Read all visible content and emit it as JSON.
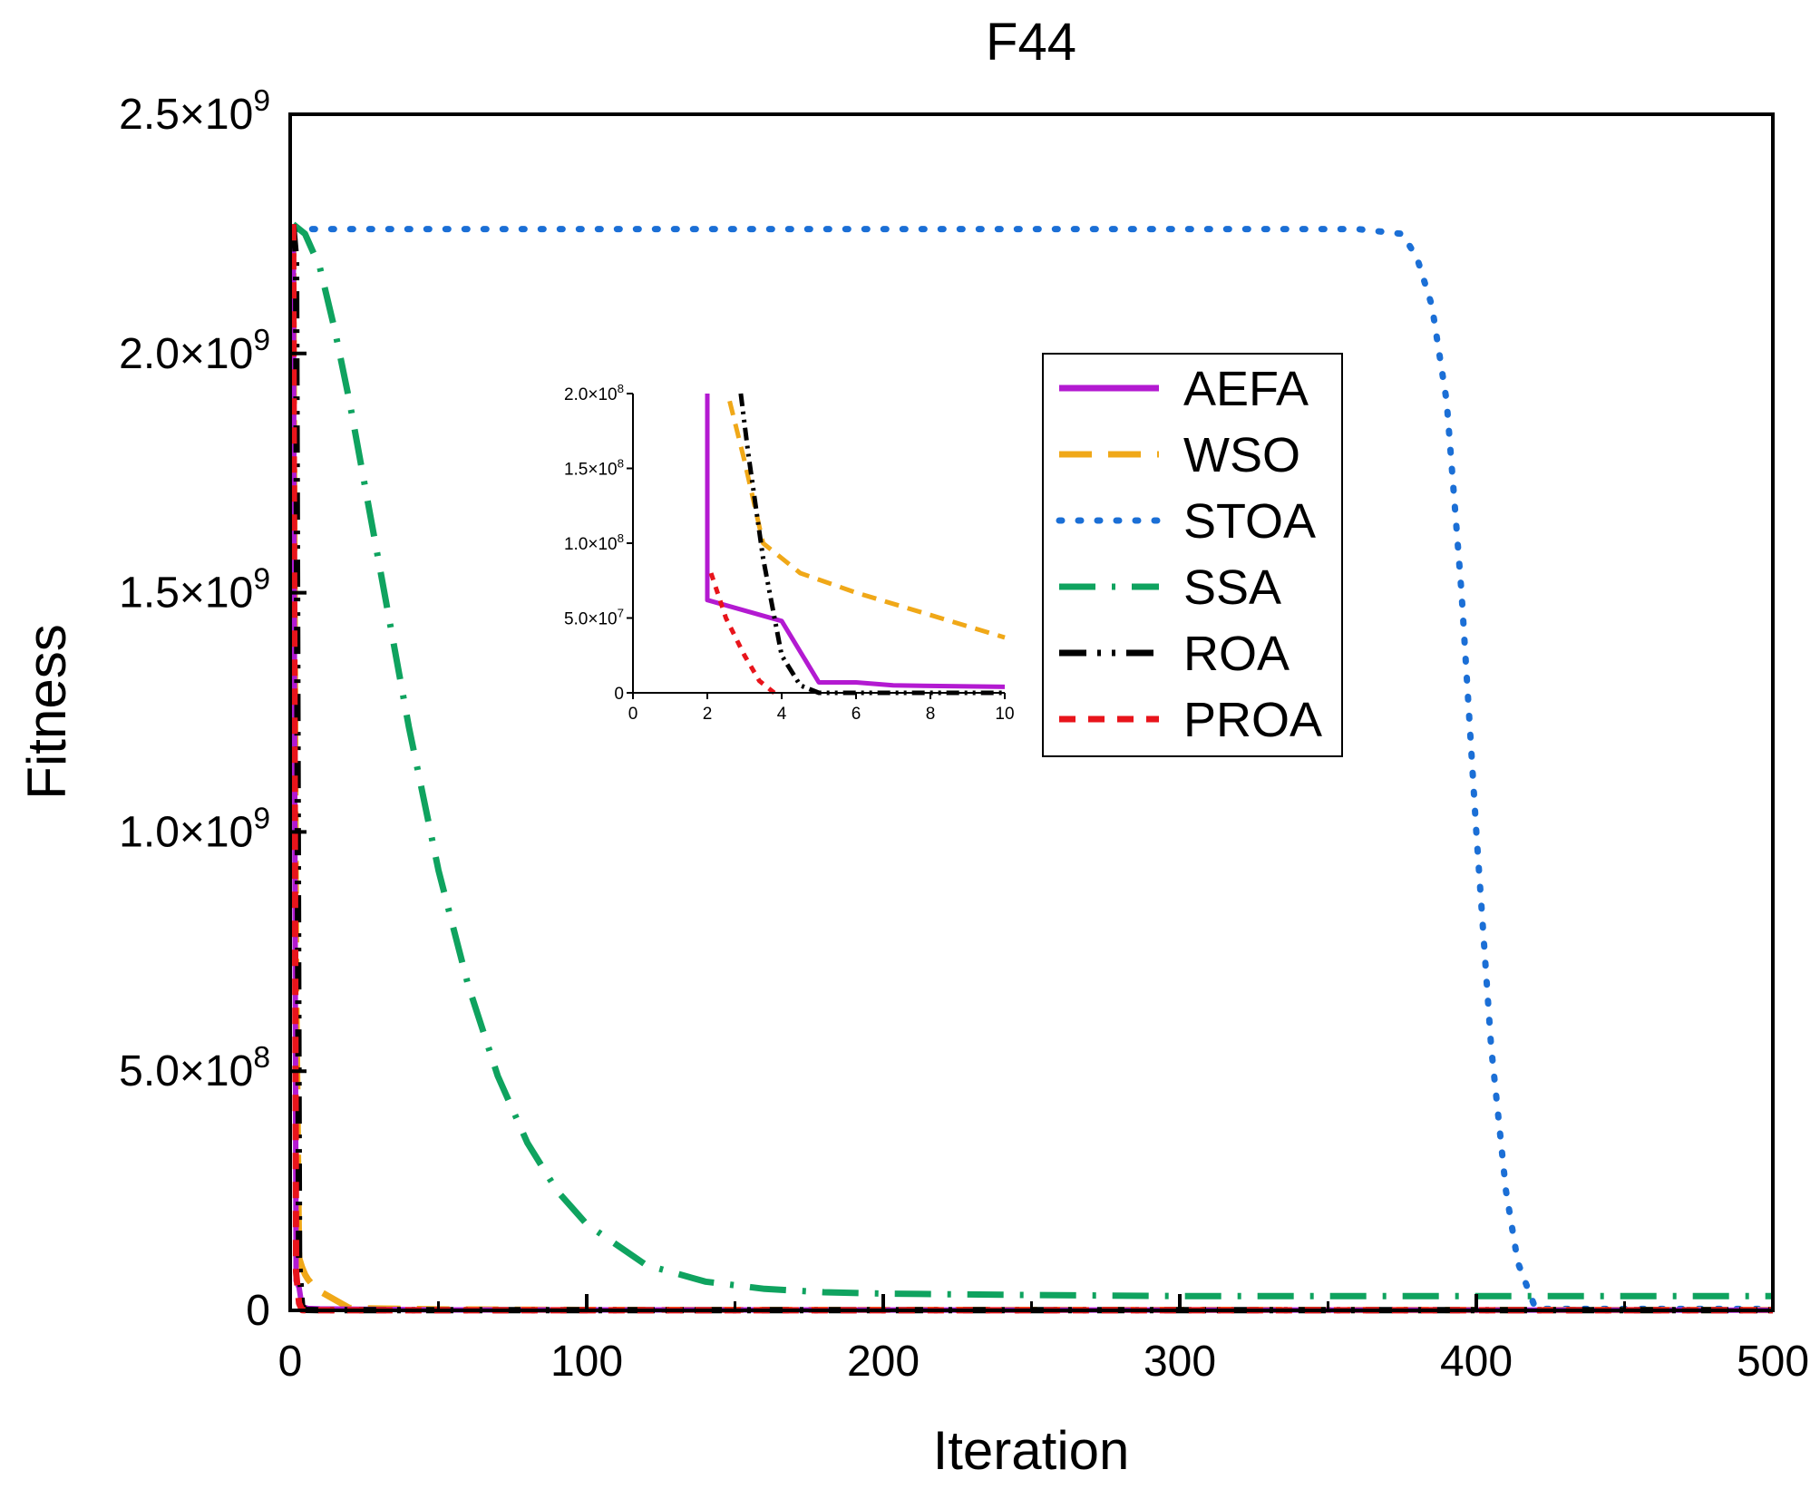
{
  "chart_data": {
    "type": "line",
    "title": "F44",
    "xlabel": "Iteration",
    "ylabel": "Fitness",
    "xlim": [
      0,
      500
    ],
    "ylim": [
      0,
      2500000000
    ],
    "x_ticks": [
      0,
      100,
      200,
      300,
      400,
      500
    ],
    "x_tick_labels": [
      "0",
      "100",
      "200",
      "300",
      "400",
      "500"
    ],
    "y_ticks": [
      0,
      500000000,
      1000000000,
      1500000000,
      2000000000,
      2500000000
    ],
    "y_tick_labels": [
      {
        "base": "0",
        "exp": ""
      },
      {
        "base": "5.0×10",
        "exp": "8"
      },
      {
        "base": "1.0×10",
        "exp": "9"
      },
      {
        "base": "1.5×10",
        "exp": "9"
      },
      {
        "base": "2.0×10",
        "exp": "9"
      },
      {
        "base": "2.5×10",
        "exp": "9"
      }
    ],
    "legend_position": "top-right",
    "series": [
      {
        "name": "AEFA",
        "color": "#b31ad1",
        "style": "solid",
        "x": [
          1,
          2,
          3,
          4,
          5,
          6,
          10,
          50,
          500
        ],
        "y": [
          2270000000,
          62000000,
          48000000,
          7000000,
          6000000,
          4000000,
          3000000,
          1000000,
          500000
        ]
      },
      {
        "name": "WSO",
        "color": "#f0a818",
        "style": "dash",
        "x": [
          1,
          2,
          3,
          4,
          5,
          6,
          8,
          10,
          20,
          50,
          100,
          500
        ],
        "y": [
          2270000000,
          700000000,
          110000000,
          90000000,
          75000000,
          65000000,
          50000000,
          40000000,
          5000000,
          2000000,
          1000000,
          800000
        ]
      },
      {
        "name": "STOA",
        "color": "#1b6fd6",
        "style": "dot",
        "x": [
          1,
          10,
          100,
          200,
          300,
          360,
          375,
          380,
          385,
          390,
          395,
          400,
          405,
          410,
          414,
          420,
          500
        ],
        "y": [
          2260000000,
          2260000000,
          2260000000,
          2260000000,
          2260000000,
          2260000000,
          2250000000,
          2200000000,
          2100000000,
          1900000000,
          1500000000,
          1000000000,
          550000000,
          250000000,
          100000000,
          3000000,
          3000000
        ]
      },
      {
        "name": "SSA",
        "color": "#0fa35f",
        "style": "dashdot",
        "x": [
          1,
          5,
          10,
          15,
          20,
          30,
          40,
          50,
          60,
          70,
          80,
          90,
          100,
          120,
          140,
          160,
          180,
          200,
          250,
          300,
          400,
          500
        ],
        "y": [
          2270000000,
          2250000000,
          2180000000,
          2050000000,
          1900000000,
          1560000000,
          1220000000,
          920000000,
          680000000,
          490000000,
          350000000,
          250000000,
          180000000,
          95000000,
          60000000,
          45000000,
          38000000,
          35000000,
          32000000,
          30000000,
          30000000,
          30000000
        ]
      },
      {
        "name": "ROA",
        "color": "#000000",
        "style": "dashdotdot",
        "x": [
          1,
          2,
          3,
          4,
          5,
          10,
          500
        ],
        "y": [
          2270000000,
          2200000000,
          100000000,
          10000000,
          1000000,
          500000,
          500000
        ]
      },
      {
        "name": "PROA",
        "color": "#e8141b",
        "style": "shortdash",
        "x": [
          1,
          2,
          3,
          4,
          5,
          500
        ],
        "y": [
          2270000000,
          80000000,
          15000000,
          500000,
          100000,
          100000
        ]
      }
    ],
    "inset": {
      "xlim": [
        0,
        10
      ],
      "ylim": [
        0,
        200000000
      ],
      "x_ticks": [
        0,
        2,
        4,
        6,
        8,
        10
      ],
      "x_tick_labels": [
        "0",
        "2",
        "4",
        "6",
        "8",
        "10"
      ],
      "y_ticks": [
        0,
        50000000,
        100000000,
        150000000,
        200000000
      ],
      "y_tick_labels": [
        {
          "base": "0",
          "exp": ""
        },
        {
          "base": "5.0×10",
          "exp": "7"
        },
        {
          "base": "1.0×10",
          "exp": "8"
        },
        {
          "base": "1.5×10",
          "exp": "8"
        },
        {
          "base": "2.0×10",
          "exp": "8"
        }
      ],
      "series": [
        {
          "name": "AEFA",
          "x": [
            2,
            2,
            4,
            5,
            6,
            7,
            10
          ],
          "y": [
            200000000,
            62000000,
            48000000,
            7000000,
            7000000,
            5000000,
            4000000
          ]
        },
        {
          "name": "WSO",
          "x": [
            2.6,
            3,
            3.5,
            4.5,
            6,
            8,
            10
          ],
          "y": [
            195000000,
            155000000,
            100000000,
            80000000,
            67000000,
            52000000,
            37000000
          ]
        },
        {
          "name": "ROA",
          "x": [
            2.9,
            3.1,
            3.5,
            4,
            4.5,
            5,
            10
          ],
          "y": [
            200000000,
            160000000,
            90000000,
            25000000,
            5000000,
            0,
            0
          ]
        },
        {
          "name": "PROA",
          "x": [
            2.1,
            2.5,
            3,
            3.4,
            3.8
          ],
          "y": [
            80000000,
            50000000,
            25000000,
            8000000,
            0
          ]
        }
      ]
    }
  }
}
